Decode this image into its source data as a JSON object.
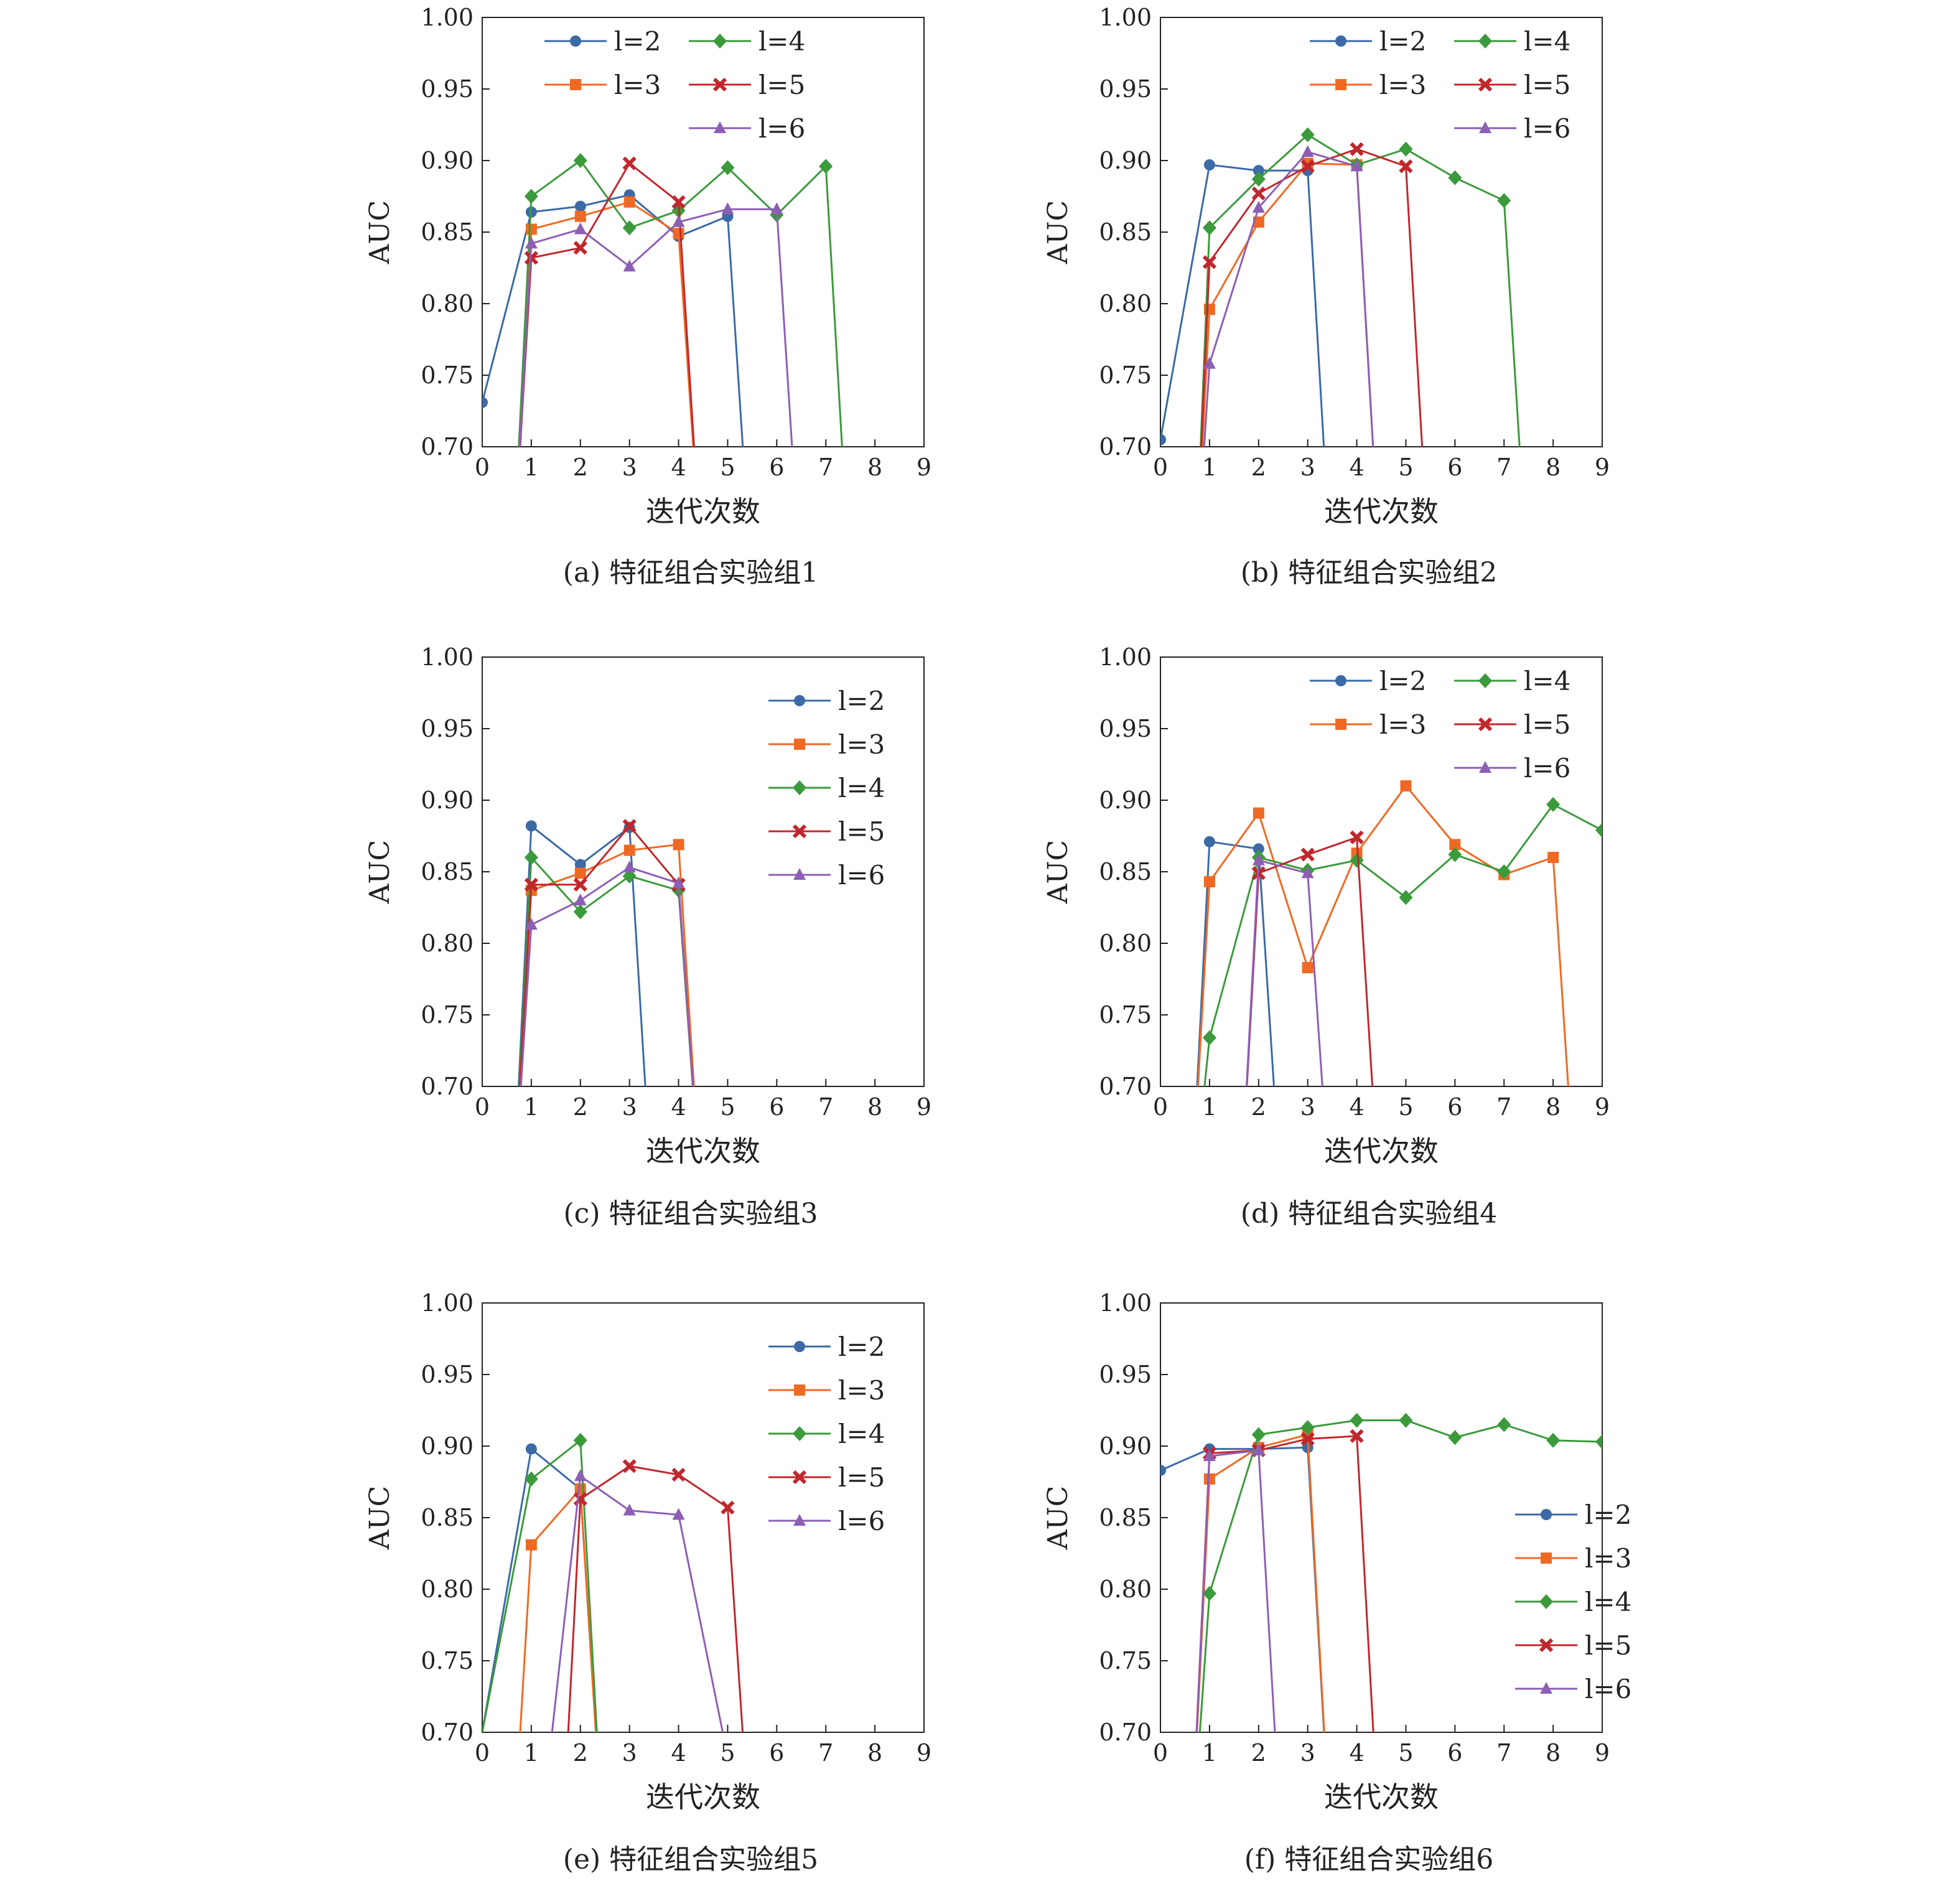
{
  "chart_data": [
    {
      "type": "line",
      "caption": "(a)  特征组合实验组1",
      "xlabel": "迭代次数",
      "ylabel": "AUC",
      "xlim": [
        0,
        9
      ],
      "ylim": [
        0.7,
        1.0
      ],
      "xticks": [
        0,
        1,
        2,
        3,
        4,
        5,
        6,
        7,
        8,
        9
      ],
      "yticks": [
        "0.70",
        "0.75",
        "0.80",
        "0.85",
        "0.90",
        "0.95",
        "1.00"
      ],
      "legend": "top-center-2col",
      "series": [
        {
          "name": "l=2",
          "x": [
            0,
            1,
            2,
            3,
            4,
            5,
            5.5
          ],
          "y": [
            0.731,
            0.864,
            0.868,
            0.876,
            0.847,
            0.861,
            0.6
          ]
        },
        {
          "name": "l=3",
          "x": [
            0.6,
            1,
            2,
            3,
            4,
            4.5
          ],
          "y": [
            0.6,
            0.852,
            0.861,
            0.871,
            0.849,
            0.6
          ]
        },
        {
          "name": "l=4",
          "x": [
            0.6,
            1,
            2,
            3,
            4,
            5,
            6,
            7,
            7.5
          ],
          "y": [
            0.6,
            0.875,
            0.9,
            0.853,
            0.865,
            0.895,
            0.862,
            0.896,
            0.6
          ]
        },
        {
          "name": "l=5",
          "x": [
            0.6,
            1,
            2,
            3,
            4,
            4.5
          ],
          "y": [
            0.6,
            0.832,
            0.839,
            0.898,
            0.871,
            0.6
          ]
        },
        {
          "name": "l=6",
          "x": [
            0.6,
            1,
            2,
            3,
            4,
            5,
            6,
            6.5
          ],
          "y": [
            0.6,
            0.842,
            0.852,
            0.826,
            0.857,
            0.866,
            0.866,
            0.6
          ]
        }
      ]
    },
    {
      "type": "line",
      "caption": "(b)  特征组合实验组2",
      "xlabel": "迭代次数",
      "ylabel": "AUC",
      "xlim": [
        0,
        9
      ],
      "ylim": [
        0.7,
        1.0
      ],
      "xticks": [
        0,
        1,
        2,
        3,
        4,
        5,
        6,
        7,
        8,
        9
      ],
      "yticks": [
        "0.70",
        "0.75",
        "0.80",
        "0.85",
        "0.90",
        "0.95",
        "1.00"
      ],
      "legend": "top-right-2col",
      "series": [
        {
          "name": "l=2",
          "x": [
            0,
            1,
            2,
            3,
            3.5
          ],
          "y": [
            0.705,
            0.897,
            0.893,
            0.893,
            0.6
          ]
        },
        {
          "name": "l=3",
          "x": [
            0.7,
            1,
            2,
            3,
            4,
            4.5
          ],
          "y": [
            0.6,
            0.796,
            0.857,
            0.898,
            0.897,
            0.6
          ]
        },
        {
          "name": "l=4",
          "x": [
            0.7,
            1,
            2,
            3,
            4,
            5,
            6,
            7,
            7.5
          ],
          "y": [
            0.6,
            0.853,
            0.887,
            0.918,
            0.897,
            0.908,
            0.888,
            0.872,
            0.6
          ]
        },
        {
          "name": "l=5",
          "x": [
            0.7,
            1,
            2,
            3,
            4,
            5,
            5.5
          ],
          "y": [
            0.6,
            0.829,
            0.877,
            0.896,
            0.908,
            0.896,
            0.6
          ]
        },
        {
          "name": "l=6",
          "x": [
            0.7,
            1,
            2,
            3,
            4,
            4.5
          ],
          "y": [
            0.6,
            0.758,
            0.867,
            0.906,
            0.896,
            0.6
          ]
        }
      ]
    },
    {
      "type": "line",
      "caption": "(c)  特征组合实验组3",
      "xlabel": "迭代次数",
      "ylabel": "AUC",
      "xlim": [
        0,
        9
      ],
      "ylim": [
        0.7,
        1.0
      ],
      "xticks": [
        0,
        1,
        2,
        3,
        4,
        5,
        6,
        7,
        8,
        9
      ],
      "yticks": [
        "0.70",
        "0.75",
        "0.80",
        "0.85",
        "0.90",
        "0.95",
        "1.00"
      ],
      "legend": "right-1col",
      "series": [
        {
          "name": "l=2",
          "x": [
            0.6,
            1,
            2,
            3,
            3.5
          ],
          "y": [
            0.6,
            0.882,
            0.855,
            0.881,
            0.6
          ]
        },
        {
          "name": "l=3",
          "x": [
            0.6,
            1,
            2,
            3,
            4,
            4.5
          ],
          "y": [
            0.6,
            0.837,
            0.849,
            0.865,
            0.869,
            0.6
          ]
        },
        {
          "name": "l=4",
          "x": [
            0.6,
            1,
            2,
            3,
            4,
            4.5
          ],
          "y": [
            0.6,
            0.86,
            0.822,
            0.847,
            0.837,
            0.6
          ]
        },
        {
          "name": "l=5",
          "x": [
            0.6,
            1,
            2,
            3,
            4,
            4.5
          ],
          "y": [
            0.6,
            0.841,
            0.841,
            0.882,
            0.841,
            0.6
          ]
        },
        {
          "name": "l=6",
          "x": [
            0.6,
            1,
            2,
            3,
            4,
            4.5
          ],
          "y": [
            0.6,
            0.813,
            0.83,
            0.853,
            0.842,
            0.6
          ]
        }
      ]
    },
    {
      "type": "line",
      "caption": "(d)  特征组合实验组4",
      "xlabel": "迭代次数",
      "ylabel": "AUC",
      "xlim": [
        0,
        9
      ],
      "ylim": [
        0.7,
        1.0
      ],
      "xticks": [
        0,
        1,
        2,
        3,
        4,
        5,
        6,
        7,
        8,
        9
      ],
      "yticks": [
        "0.70",
        "0.75",
        "0.80",
        "0.85",
        "0.90",
        "0.95",
        "1.00"
      ],
      "legend": "top-right-2col",
      "series": [
        {
          "name": "l=2",
          "x": [
            0.6,
            1,
            2,
            2.5
          ],
          "y": [
            0.6,
            0.871,
            0.866,
            0.6
          ]
        },
        {
          "name": "l=3",
          "x": [
            0.6,
            1,
            2,
            3,
            4,
            5,
            6,
            7,
            8,
            8.5
          ],
          "y": [
            0.6,
            0.843,
            0.891,
            0.783,
            0.863,
            0.91,
            0.869,
            0.848,
            0.86,
            0.6
          ]
        },
        {
          "name": "l=4",
          "x": [
            0.6,
            1,
            2,
            3,
            4,
            5,
            6,
            7,
            8,
            9
          ],
          "y": [
            0.6,
            0.734,
            0.86,
            0.851,
            0.858,
            0.832,
            0.862,
            0.85,
            0.897,
            0.879
          ]
        },
        {
          "name": "l=5",
          "x": [
            1.6,
            2,
            3,
            4,
            4.5
          ],
          "y": [
            0.6,
            0.849,
            0.862,
            0.874,
            0.6
          ]
        },
        {
          "name": "l=6",
          "x": [
            1.6,
            2,
            3,
            3.5
          ],
          "y": [
            0.6,
            0.858,
            0.849,
            0.6
          ]
        }
      ]
    },
    {
      "type": "line",
      "caption": "(e)  特征组合实验组5",
      "xlabel": "迭代次数",
      "ylabel": "AUC",
      "xlim": [
        0,
        9
      ],
      "ylim": [
        0.7,
        1.0
      ],
      "xticks": [
        0,
        1,
        2,
        3,
        4,
        5,
        6,
        7,
        8,
        9
      ],
      "yticks": [
        "0.70",
        "0.75",
        "0.80",
        "0.85",
        "0.90",
        "0.95",
        "1.00"
      ],
      "legend": "right-1col",
      "series": [
        {
          "name": "l=2",
          "x": [
            0,
            1,
            2,
            2.5
          ],
          "y": [
            0.7,
            0.898,
            0.87,
            0.6
          ]
        },
        {
          "name": "l=3",
          "x": [
            0.6,
            1,
            2,
            2.5
          ],
          "y": [
            0.6,
            0.831,
            0.87,
            0.6
          ]
        },
        {
          "name": "l=4",
          "x": [
            0,
            1,
            2,
            2.5
          ],
          "y": [
            0.7,
            0.877,
            0.904,
            0.6
          ]
        },
        {
          "name": "l=5",
          "x": [
            1.6,
            2,
            3,
            4,
            5,
            5.5
          ],
          "y": [
            0.6,
            0.863,
            0.886,
            0.88,
            0.857,
            0.6
          ]
        },
        {
          "name": "l=6",
          "x": [
            1.1,
            2,
            3,
            4,
            4.9
          ],
          "y": [
            0.6,
            0.879,
            0.855,
            0.852,
            0.7
          ]
        }
      ]
    },
    {
      "type": "line",
      "caption": "(f)  特征组合实验组6",
      "xlabel": "迭代次数",
      "ylabel": "AUC",
      "xlim": [
        0,
        9
      ],
      "ylim": [
        0.7,
        1.0
      ],
      "xticks": [
        0,
        1,
        2,
        3,
        4,
        5,
        6,
        7,
        8,
        9
      ],
      "yticks": [
        "0.70",
        "0.75",
        "0.80",
        "0.85",
        "0.90",
        "0.95",
        "1.00"
      ],
      "legend": "lower-right-1col",
      "series": [
        {
          "name": "l=2",
          "x": [
            0,
            1,
            2,
            3,
            3.5
          ],
          "y": [
            0.883,
            0.898,
            0.898,
            0.899,
            0.6
          ]
        },
        {
          "name": "l=3",
          "x": [
            0.6,
            1,
            2,
            3,
            3.5
          ],
          "y": [
            0.6,
            0.877,
            0.899,
            0.908,
            0.6
          ]
        },
        {
          "name": "l=4",
          "x": [
            0.6,
            1,
            2,
            3,
            4,
            5,
            6,
            7,
            8,
            9
          ],
          "y": [
            0.6,
            0.797,
            0.908,
            0.913,
            0.918,
            0.918,
            0.906,
            0.915,
            0.904,
            0.903
          ]
        },
        {
          "name": "l=5",
          "x": [
            0.6,
            1,
            2,
            3,
            4,
            4.5
          ],
          "y": [
            0.6,
            0.895,
            0.897,
            0.905,
            0.907,
            0.6
          ]
        },
        {
          "name": "l=6",
          "x": [
            0.6,
            1,
            2,
            2.5
          ],
          "y": [
            0.6,
            0.893,
            0.897,
            0.6
          ]
        }
      ]
    }
  ],
  "colors": [
    "#3b6aa6",
    "#ee6a24",
    "#3b9a3b",
    "#c0272d",
    "#8c5fb5"
  ],
  "markers": [
    "circle",
    "square",
    "diamond",
    "x-mark",
    "triangle"
  ]
}
